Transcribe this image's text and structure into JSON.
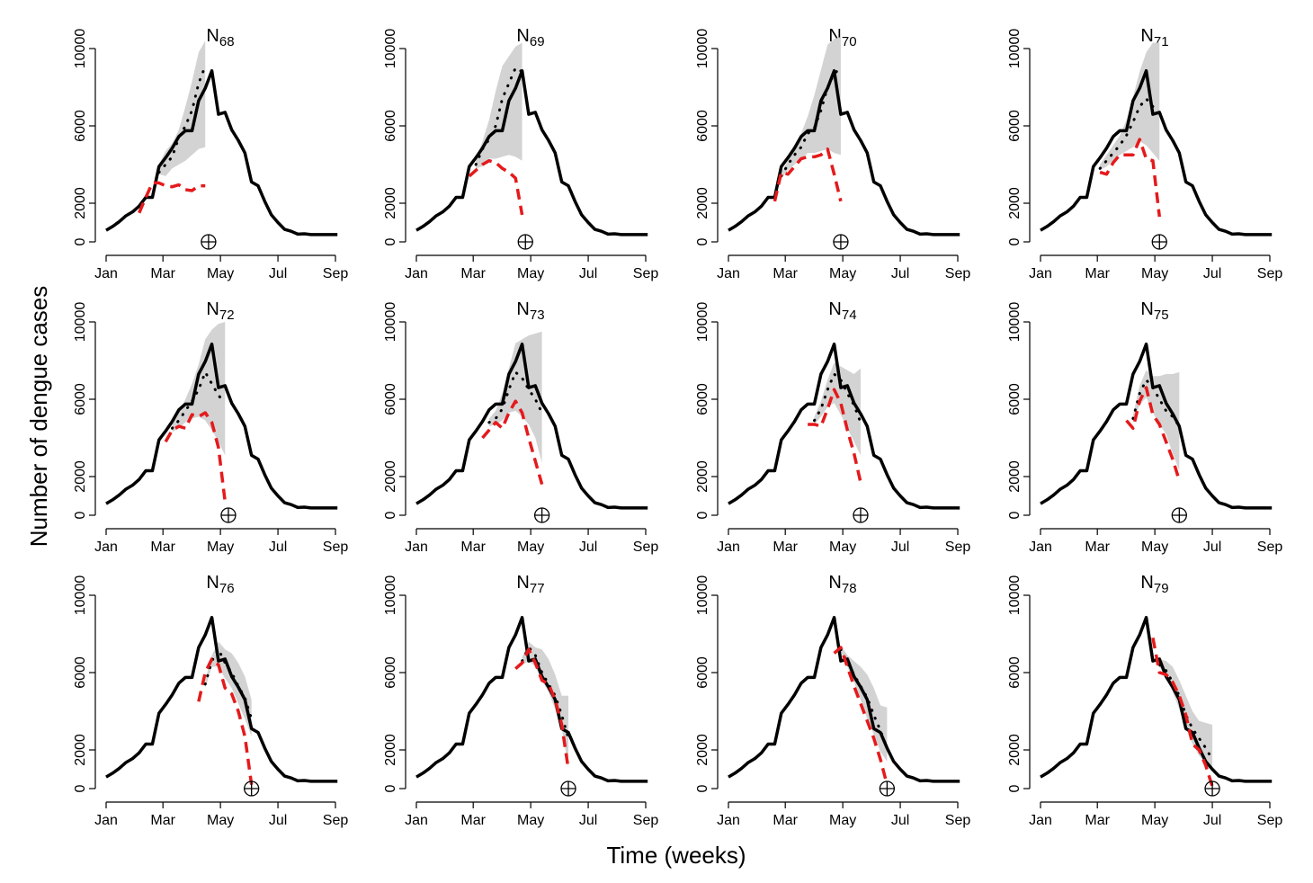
{
  "figure": {
    "xlabel": "Time (weeks)",
    "ylabel": "Number of dengue cases"
  },
  "chart_data": {
    "type": "line",
    "x_unit": "week of year",
    "x_ticks": [
      {
        "label": "Jan",
        "week": 1
      },
      {
        "label": "Mar",
        "week": 9.6
      },
      {
        "label": "May",
        "week": 18.3
      },
      {
        "label": "Jul",
        "week": 27
      },
      {
        "label": "Sep",
        "week": 35.7
      }
    ],
    "y_ticks": [
      0,
      2000,
      6000,
      10000
    ],
    "xlim": [
      1,
      35.7
    ],
    "ylim": [
      0,
      10000
    ],
    "observed": {
      "name": "Observed weekly cases",
      "color": "#000000",
      "weeks": [
        1,
        2,
        3,
        4,
        5,
        6,
        7,
        8,
        9,
        10,
        11,
        12,
        13,
        14,
        15,
        16,
        17,
        18,
        19,
        20,
        21,
        22,
        23,
        24,
        25,
        26,
        27,
        28,
        29,
        30,
        31,
        32,
        33,
        34,
        35,
        36
      ],
      "values": [
        600,
        800,
        1050,
        1350,
        1550,
        1850,
        2300,
        2300,
        3900,
        4350,
        4850,
        5450,
        5750,
        5750,
        7300,
        7950,
        8850,
        6600,
        6700,
        5800,
        5250,
        4600,
        3100,
        2900,
        2100,
        1400,
        1000,
        650,
        550,
        400,
        420,
        380,
        380,
        380,
        380,
        380
      ]
    },
    "panels": [
      {
        "title_main": "N",
        "title_sub": "68",
        "target_week": 16.5,
        "forecast_weeks": [
          6,
          7,
          8,
          9,
          10,
          11,
          12,
          13,
          14,
          15,
          16
        ],
        "forecast": [
          1500,
          2300,
          3050,
          3050,
          2900,
          2850,
          2950,
          2700,
          2650,
          2900,
          2900
        ],
        "median_weeks": [
          9,
          10,
          11,
          12,
          13,
          14,
          15,
          16
        ],
        "median": [
          3600,
          4000,
          4400,
          5400,
          6000,
          6800,
          8200,
          9100
        ],
        "band_weeks": [
          9,
          10,
          11,
          12,
          13,
          14,
          15,
          16
        ],
        "lower": [
          3500,
          3400,
          3800,
          4000,
          4200,
          4500,
          4800,
          4900
        ],
        "upper": [
          4000,
          4700,
          5100,
          5800,
          7000,
          8300,
          9800,
          10400
        ]
      },
      {
        "title_main": "N",
        "title_sub": "69",
        "target_week": 17.5,
        "forecast_weeks": [
          9,
          10,
          11,
          12,
          13,
          14,
          15,
          16,
          17
        ],
        "forecast": [
          3400,
          3700,
          4000,
          4200,
          4100,
          3800,
          3600,
          3300,
          1400
        ],
        "median_weeks": [
          10,
          11,
          12,
          13,
          14,
          15,
          16,
          17
        ],
        "median": [
          4000,
          4800,
          5300,
          6000,
          7400,
          8200,
          9000,
          8800
        ],
        "band_weeks": [
          10,
          11,
          12,
          13,
          14,
          15,
          16,
          17
        ],
        "lower": [
          3800,
          3900,
          4300,
          4300,
          4400,
          4500,
          4400,
          4200
        ],
        "upper": [
          4300,
          5200,
          6300,
          7800,
          9100,
          9600,
          10100,
          10300
        ]
      },
      {
        "title_main": "N",
        "title_sub": "70",
        "target_week": 18,
        "forecast_weeks": [
          8,
          9,
          10,
          11,
          12,
          13,
          14,
          15,
          16,
          17,
          18
        ],
        "forecast": [
          2100,
          3600,
          3500,
          3900,
          4300,
          4400,
          4400,
          4500,
          4800,
          3500,
          2100
        ],
        "median_weeks": [
          9,
          10,
          11,
          12,
          13,
          14,
          15,
          16,
          17,
          18
        ],
        "median": [
          3400,
          4000,
          4500,
          4900,
          5600,
          5900,
          6800,
          8000,
          8700,
          9000
        ],
        "band_weeks": [
          9,
          10,
          11,
          12,
          13,
          14,
          15,
          16,
          17,
          18
        ],
        "lower": [
          3300,
          3700,
          4000,
          4300,
          4600,
          4600,
          4700,
          4800,
          4600,
          4500
        ],
        "upper": [
          3600,
          4200,
          4900,
          5600,
          6500,
          7600,
          8900,
          10200,
          10500,
          10600
        ]
      },
      {
        "title_main": "N",
        "title_sub": "71",
        "target_week": 19,
        "forecast_weeks": [
          10,
          11,
          12,
          13,
          14,
          15,
          16,
          17,
          18,
          19
        ],
        "forecast": [
          3600,
          3500,
          4100,
          4500,
          4500,
          4500,
          5300,
          4300,
          4200,
          1300
        ],
        "median_weeks": [
          10,
          11,
          12,
          13,
          14,
          15,
          16,
          17,
          18,
          19
        ],
        "median": [
          3800,
          4200,
          4600,
          5000,
          5500,
          6200,
          7000,
          7400,
          7000,
          6600
        ],
        "band_weeks": [
          10,
          11,
          12,
          13,
          14,
          15,
          16,
          17,
          18,
          19
        ],
        "lower": [
          3700,
          3900,
          4200,
          4500,
          4700,
          4900,
          5200,
          5000,
          4600,
          4200
        ],
        "upper": [
          4000,
          4500,
          5000,
          5500,
          6300,
          7500,
          8800,
          9800,
          10300,
          10300
        ]
      },
      {
        "title_main": "N",
        "title_sub": "72",
        "target_week": 19.5,
        "forecast_weeks": [
          10,
          11,
          12,
          13,
          14,
          15,
          16,
          17,
          18,
          19
        ],
        "forecast": [
          3800,
          4400,
          4600,
          4500,
          5200,
          5100,
          5300,
          4800,
          3500,
          700
        ],
        "median_weeks": [
          11,
          12,
          13,
          14,
          15,
          16,
          17,
          18,
          19
        ],
        "median": [
          4500,
          4900,
          5400,
          5900,
          6500,
          7400,
          6800,
          6200,
          5800
        ],
        "band_weeks": [
          11,
          12,
          13,
          14,
          15,
          16,
          17,
          18,
          19
        ],
        "lower": [
          4300,
          4500,
          4800,
          5000,
          5100,
          4900,
          4400,
          3800,
          3100
        ],
        "upper": [
          4800,
          5300,
          6000,
          6800,
          7800,
          9100,
          9600,
          9900,
          10000
        ]
      },
      {
        "title_main": "N",
        "title_sub": "73",
        "target_week": 20,
        "forecast_weeks": [
          11,
          12,
          13,
          14,
          15,
          16,
          17,
          18,
          19,
          20
        ],
        "forecast": [
          4000,
          4400,
          4800,
          4500,
          5300,
          5900,
          5300,
          4000,
          2800,
          1600
        ],
        "median_weeks": [
          12,
          13,
          14,
          15,
          16,
          17,
          18,
          19,
          20
        ],
        "median": [
          4800,
          5000,
          5500,
          6500,
          7400,
          7100,
          6500,
          6000,
          5300
        ],
        "band_weeks": [
          12,
          13,
          14,
          15,
          16,
          17,
          18,
          19,
          20
        ],
        "lower": [
          4600,
          4700,
          4900,
          5300,
          5400,
          5100,
          4700,
          4000,
          2700
        ],
        "upper": [
          5000,
          5400,
          6300,
          7600,
          8900,
          9100,
          9300,
          9400,
          9500
        ]
      },
      {
        "title_main": "N",
        "title_sub": "74",
        "target_week": 21,
        "forecast_weeks": [
          13,
          14,
          15,
          16,
          17,
          18,
          19,
          20,
          21
        ],
        "forecast": [
          4700,
          4700,
          4600,
          5500,
          6500,
          5800,
          4400,
          3200,
          1700
        ],
        "median_weeks": [
          14,
          15,
          16,
          17,
          18,
          19,
          20,
          21
        ],
        "median": [
          4900,
          5500,
          6500,
          7300,
          7000,
          6300,
          5700,
          4800
        ],
        "band_weeks": [
          14,
          15,
          16,
          17,
          18,
          19,
          20,
          21
        ],
        "lower": [
          4700,
          5100,
          5600,
          5800,
          5200,
          4500,
          3800,
          3100
        ],
        "upper": [
          5100,
          5900,
          7000,
          7900,
          7700,
          7500,
          7300,
          7600
        ]
      },
      {
        "title_main": "N",
        "title_sub": "75",
        "target_week": 22,
        "forecast_weeks": [
          14,
          15,
          16,
          17,
          18,
          19,
          20,
          21,
          22
        ],
        "forecast": [
          4900,
          4500,
          5900,
          6600,
          5200,
          4700,
          3800,
          2900,
          1800
        ],
        "median_weeks": [
          15,
          16,
          17,
          18,
          19,
          20,
          21,
          22
        ],
        "median": [
          5000,
          6300,
          7000,
          6600,
          6000,
          5400,
          5100,
          4600
        ],
        "band_weeks": [
          15,
          16,
          17,
          18,
          19,
          20,
          21,
          22
        ],
        "lower": [
          4800,
          5700,
          6100,
          5300,
          4700,
          4200,
          3200,
          2300
        ],
        "upper": [
          5200,
          6700,
          7500,
          7200,
          7200,
          7300,
          7300,
          7400
        ]
      },
      {
        "title_main": "N",
        "title_sub": "76",
        "target_week": 23,
        "forecast_weeks": [
          15,
          16,
          17,
          18,
          19,
          20,
          21,
          22,
          23
        ],
        "forecast": [
          4500,
          6000,
          6700,
          6400,
          5200,
          4900,
          4000,
          2700,
          200
        ],
        "median_weeks": [
          16,
          17,
          18,
          19,
          20,
          21,
          22,
          23
        ],
        "median": [
          5400,
          6600,
          7200,
          6500,
          6000,
          5300,
          4700,
          3600
        ],
        "band_weeks": [
          16,
          17,
          18,
          19,
          20,
          21,
          22,
          23
        ],
        "lower": [
          5200,
          6300,
          6300,
          5700,
          5200,
          4400,
          3600,
          2700
        ],
        "upper": [
          5600,
          6900,
          7600,
          7200,
          7000,
          6500,
          5800,
          4600
        ]
      },
      {
        "title_main": "N",
        "title_sub": "77",
        "target_week": 24,
        "forecast_weeks": [
          16,
          17,
          18,
          19,
          20,
          21,
          22,
          23,
          24
        ],
        "forecast": [
          6200,
          6500,
          7200,
          6500,
          5600,
          5400,
          4600,
          3300,
          1000
        ],
        "median_weeks": [
          17,
          18,
          19,
          20,
          21,
          22,
          23,
          24
        ],
        "median": [
          6600,
          7300,
          6900,
          6000,
          5400,
          4800,
          3800,
          2600
        ],
        "band_weeks": [
          17,
          18,
          19,
          20,
          21,
          22,
          23,
          24
        ],
        "lower": [
          6400,
          6600,
          6300,
          5600,
          5000,
          4100,
          3100,
          1100
        ],
        "upper": [
          6800,
          7600,
          7300,
          7200,
          6700,
          5900,
          4800,
          4800
        ]
      },
      {
        "title_main": "N",
        "title_sub": "78",
        "target_week": 25,
        "forecast_weeks": [
          17,
          18,
          19,
          20,
          21,
          22,
          23,
          24,
          25
        ],
        "forecast": [
          7000,
          7300,
          6300,
          5300,
          4400,
          3500,
          2600,
          1500,
          200
        ],
        "median_weeks": [
          18,
          19,
          20,
          21,
          22,
          23,
          24,
          25
        ],
        "median": [
          7200,
          6500,
          5900,
          5300,
          4700,
          3800,
          3000,
          2100
        ],
        "band_weeks": [
          18,
          19,
          20,
          21,
          22,
          23,
          24,
          25
        ],
        "lower": [
          7100,
          6300,
          5500,
          4600,
          3600,
          2800,
          1900,
          1400
        ],
        "upper": [
          7400,
          6900,
          6600,
          6300,
          5900,
          5200,
          4300,
          4200
        ]
      },
      {
        "title_main": "N",
        "title_sub": "79",
        "target_week": 27,
        "forecast_weeks": [
          18,
          19,
          20,
          21,
          22,
          23,
          24,
          25,
          26,
          27
        ],
        "forecast": [
          7800,
          6000,
          5900,
          5500,
          4800,
          3800,
          2300,
          2000,
          1200,
          100
        ],
        "median_weeks": [
          19,
          20,
          21,
          22,
          23,
          24,
          25,
          26,
          27
        ],
        "median": [
          6400,
          6100,
          5500,
          4800,
          3800,
          3100,
          2600,
          2100,
          1500
        ],
        "band_weeks": [
          19,
          20,
          21,
          22,
          23,
          24,
          25,
          26,
          27
        ],
        "lower": [
          6300,
          5700,
          5000,
          4100,
          3100,
          2300,
          1700,
          1300,
          900
        ],
        "upper": [
          6700,
          6600,
          6300,
          5600,
          4800,
          4000,
          3500,
          3400,
          3300
        ]
      }
    ]
  },
  "colors": {
    "observed": "#000000",
    "forecast": "#e41a1c",
    "band": "#d3d3d3",
    "median": "#000000"
  }
}
